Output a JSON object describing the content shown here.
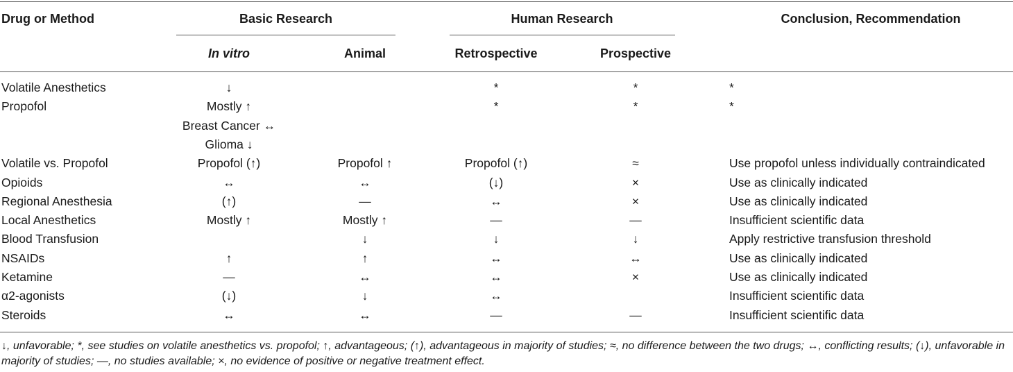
{
  "headers": {
    "drug": "Drug or Method",
    "basic": "Basic Research",
    "human": "Human Research",
    "conclusion": "Conclusion, Recommendation",
    "in_vitro": "In vitro",
    "animal": "Animal",
    "retrospective": "Retrospective",
    "prospective": "Prospective"
  },
  "rows": [
    {
      "drug": "Volatile Anesthetics",
      "in_vitro": [
        "↓"
      ],
      "animal": "",
      "retro": "*",
      "pro": "*",
      "concl": "*"
    },
    {
      "drug": "Propofol",
      "in_vitro": [
        "Mostly ↑",
        "Breast Cancer ↔",
        "Glioma ↓"
      ],
      "animal": "",
      "retro": "*",
      "pro": "*",
      "concl": "*"
    },
    {
      "drug": "Volatile vs. Propofol",
      "in_vitro": [
        "Propofol (↑)"
      ],
      "animal": "Propofol ↑",
      "retro": "Propofol (↑)",
      "pro": "≈",
      "concl": "Use propofol unless individually contraindicated"
    },
    {
      "drug": "Opioids",
      "in_vitro": [
        "↔"
      ],
      "animal": "↔",
      "retro": "(↓)",
      "pro": "×",
      "concl": "Use as clinically indicated"
    },
    {
      "drug": "Regional Anesthesia",
      "in_vitro": [
        "(↑)"
      ],
      "animal": "—",
      "retro": "↔",
      "pro": "×",
      "concl": "Use as clinically indicated"
    },
    {
      "drug": "Local Anesthetics",
      "in_vitro": [
        "Mostly ↑"
      ],
      "animal": "Mostly ↑",
      "retro": "—",
      "pro": "—",
      "concl": "Insufficient scientific data"
    },
    {
      "drug": "Blood Transfusion",
      "in_vitro": [
        ""
      ],
      "animal": "↓",
      "retro": "↓",
      "pro": "↓",
      "concl": "Apply restrictive transfusion threshold"
    },
    {
      "drug": "NSAIDs",
      "in_vitro": [
        "↑"
      ],
      "animal": "↑",
      "retro": "↔",
      "pro": "↔",
      "concl": "Use as clinically indicated"
    },
    {
      "drug": "Ketamine",
      "in_vitro": [
        "—"
      ],
      "animal": "↔",
      "retro": "↔",
      "pro": "×",
      "concl": "Use as clinically indicated"
    },
    {
      "drug": "α2-agonists",
      "in_vitro": [
        "(↓)"
      ],
      "animal": "↓",
      "retro": "↔",
      "pro": "",
      "concl": "Insufficient scientific data"
    },
    {
      "drug": "Steroids",
      "in_vitro": [
        "↔"
      ],
      "animal": "↔",
      "retro": "—",
      "pro": "—",
      "concl": "Insufficient scientific data"
    }
  ],
  "footnote": "↓, unfavorable; *, see studies on volatile anesthetics vs. propofol; ↑, advantageous; (↑), advantageous in majority of studies; ≈, no difference between the two drugs; ↔, conflicting results; (↓), unfavorable in majority of studies; —, no studies available; ×, no evidence of positive or negative treatment effect."
}
